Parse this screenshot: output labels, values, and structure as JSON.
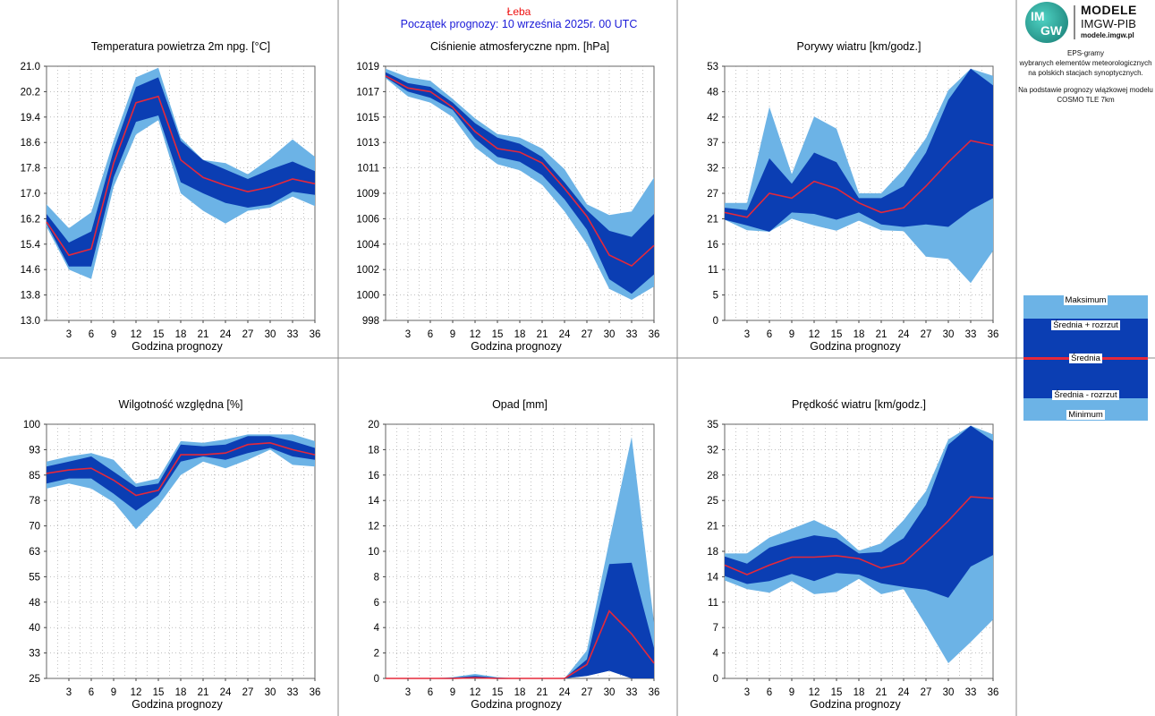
{
  "header": {
    "station": "Łeba",
    "start": "Początek prognozy: 10 września 2025r. 00 UTC"
  },
  "logo": {
    "badge_top": "IM",
    "badge_bottom": "GW",
    "brand1": "MODELE",
    "brand2": "IMGW-PIB",
    "brand3": "modele.imgw.pl"
  },
  "description": {
    "line1": "EPS-gramy",
    "line2": "wybranych elementów meteorologicznych",
    "line3": "na polskich stacjach  synoptycznych.",
    "line4": "Na podstawie prognozy wiązkowej modelu",
    "line5": "COSMO TLE 7km"
  },
  "legend": {
    "max": "Maksimum",
    "mean_plus": "Średnia + rozrzut",
    "mean": "Średnia",
    "mean_minus": "Średnia - rozrzut",
    "min": "Minimum"
  },
  "colors": {
    "outer_band": "#6cb3e6",
    "inner_band": "#0b3eb3",
    "mean_line": "#e5283a",
    "header_red": "#ee1111",
    "header_blue": "#1a1ad8",
    "grid": "#9a9a9a"
  },
  "chart_data": [
    {
      "type": "area",
      "title": "Temperatura powietrza 2m npg. [°C]",
      "xlabel": "Godzina prognozy",
      "x": [
        0,
        3,
        6,
        9,
        12,
        15,
        18,
        21,
        24,
        27,
        30,
        33,
        36
      ],
      "x_ticks": [
        3,
        6,
        9,
        12,
        15,
        18,
        21,
        24,
        27,
        30,
        33,
        36
      ],
      "y_ticks": [
        "13.0",
        "13.8",
        "14.6",
        "15.4",
        "16.2",
        "17.0",
        "17.8",
        "18.6",
        "19.4",
        "20.2",
        "21.0"
      ],
      "ylim": [
        13.0,
        21.0
      ],
      "min": [
        15.95,
        14.6,
        14.3,
        17.2,
        18.85,
        19.3,
        17.0,
        16.45,
        16.05,
        16.45,
        16.55,
        16.9,
        16.6
      ],
      "mean_minus": [
        16.05,
        14.7,
        14.7,
        17.5,
        19.25,
        19.45,
        17.35,
        17.0,
        16.7,
        16.55,
        16.65,
        17.05,
        16.95
      ],
      "mean": [
        16.1,
        15.05,
        15.25,
        17.95,
        19.85,
        20.05,
        18.05,
        17.5,
        17.25,
        17.05,
        17.2,
        17.45,
        17.3
      ],
      "mean_plus": [
        16.35,
        15.45,
        15.8,
        18.35,
        20.35,
        20.65,
        18.65,
        18.05,
        17.75,
        17.45,
        17.75,
        18.0,
        17.7
      ],
      "max": [
        16.65,
        15.9,
        16.4,
        18.65,
        20.65,
        20.95,
        18.75,
        18.05,
        17.95,
        17.6,
        18.1,
        18.7,
        18.15
      ]
    },
    {
      "type": "area",
      "title": "Ciśnienie atmosferyczne npm. [hPa]",
      "xlabel": "Godzina prognozy",
      "x": [
        0,
        3,
        6,
        9,
        12,
        15,
        18,
        21,
        24,
        27,
        30,
        33,
        36
      ],
      "x_ticks": [
        3,
        6,
        9,
        12,
        15,
        18,
        21,
        24,
        27,
        30,
        33,
        36
      ],
      "y_ticks": [
        "998",
        "1000",
        "1002",
        "1004",
        "1006",
        "1009",
        "1011",
        "1013",
        "1015",
        "1017",
        "1019"
      ],
      "ylim": [
        998,
        1019
      ],
      "min": [
        1018.0,
        1016.5,
        1016.0,
        1014.8,
        1012.3,
        1010.9,
        1010.4,
        1009.2,
        1007.0,
        1004.3,
        1000.6,
        999.7,
        1000.8
      ],
      "mean_minus": [
        1018.1,
        1016.9,
        1016.4,
        1015.4,
        1013.0,
        1011.5,
        1011.1,
        1010.0,
        1008.0,
        1005.5,
        1001.4,
        1000.2,
        1001.8
      ],
      "mean": [
        1018.2,
        1017.2,
        1016.9,
        1015.6,
        1013.6,
        1012.2,
        1011.9,
        1011.0,
        1008.9,
        1006.6,
        1003.4,
        1002.5,
        1004.2
      ],
      "mean_plus": [
        1018.5,
        1017.6,
        1017.3,
        1016.0,
        1014.3,
        1013.1,
        1012.6,
        1011.5,
        1009.4,
        1007.1,
        1005.4,
        1004.9,
        1006.8
      ],
      "max": [
        1018.8,
        1018.1,
        1017.8,
        1016.3,
        1014.7,
        1013.4,
        1013.1,
        1012.2,
        1010.5,
        1007.6,
        1006.7,
        1007.0,
        1009.8
      ]
    },
    {
      "type": "area",
      "title": "Porywy wiatru [km/godz.]",
      "xlabel": "Godzina prognozy",
      "x": [
        0,
        3,
        6,
        9,
        12,
        15,
        18,
        21,
        24,
        27,
        30,
        33,
        36
      ],
      "x_ticks": [
        3,
        6,
        9,
        12,
        15,
        18,
        21,
        24,
        27,
        30,
        33,
        36
      ],
      "y_ticks": [
        "0",
        "5",
        "11",
        "16",
        "21",
        "27",
        "32",
        "37",
        "42",
        "48",
        "53"
      ],
      "ylim": [
        0,
        53
      ],
      "min": [
        21.0,
        18.8,
        18.5,
        21.2,
        19.8,
        18.7,
        20.8,
        18.8,
        18.6,
        13.3,
        12.8,
        7.8,
        14.5
      ],
      "mean_minus": [
        21.0,
        19.8,
        18.5,
        22.5,
        22.2,
        21.0,
        22.5,
        20.0,
        19.5,
        20.0,
        19.5,
        23.0,
        25.5
      ],
      "mean": [
        22.5,
        21.5,
        26.5,
        25.5,
        29.0,
        27.5,
        24.5,
        22.5,
        23.5,
        28.0,
        33.0,
        37.5,
        36.5
      ],
      "mean_plus": [
        23.5,
        23.0,
        33.8,
        28.5,
        35.0,
        33.0,
        25.5,
        25.5,
        28.0,
        35.0,
        46.0,
        52.5,
        49.0
      ],
      "max": [
        24.5,
        24.5,
        44.5,
        30.5,
        42.5,
        40.0,
        26.5,
        26.5,
        31.5,
        38.0,
        48.0,
        52.5,
        51.0
      ]
    },
    {
      "type": "area",
      "title": "Wilgotność względna [%]",
      "xlabel": "Godzina prognozy",
      "x": [
        0,
        3,
        6,
        9,
        12,
        15,
        18,
        21,
        24,
        27,
        30,
        33,
        36
      ],
      "x_ticks": [
        3,
        6,
        9,
        12,
        15,
        18,
        21,
        24,
        27,
        30,
        33,
        36
      ],
      "y_ticks": [
        "25",
        "33",
        "40",
        "48",
        "55",
        "63",
        "70",
        "78",
        "85",
        "93",
        "100"
      ],
      "ylim": [
        25,
        100
      ],
      "min": [
        81.0,
        82.5,
        81.0,
        77.0,
        69.0,
        76.0,
        85.0,
        89.0,
        87.0,
        89.5,
        92.5,
        88.0,
        87.5
      ],
      "mean_minus": [
        82.5,
        84.0,
        84.0,
        79.5,
        74.5,
        79.0,
        89.0,
        90.5,
        89.5,
        91.5,
        93.0,
        90.5,
        89.5
      ],
      "mean": [
        85.5,
        86.5,
        87.0,
        83.5,
        79.0,
        80.5,
        91.0,
        91.0,
        91.5,
        94.0,
        94.5,
        92.5,
        91.0
      ],
      "mean_plus": [
        87.5,
        89.0,
        90.5,
        86.0,
        81.5,
        82.5,
        94.0,
        93.5,
        94.0,
        96.5,
        96.5,
        95.0,
        93.0
      ],
      "max": [
        89.0,
        90.5,
        91.5,
        89.5,
        82.5,
        84.0,
        95.0,
        94.5,
        95.5,
        97.0,
        97.0,
        97.0,
        95.0
      ]
    },
    {
      "type": "area",
      "title": "Opad [mm]",
      "xlabel": "Godzina prognozy",
      "x": [
        0,
        3,
        6,
        9,
        12,
        15,
        18,
        21,
        24,
        27,
        30,
        33,
        36
      ],
      "x_ticks": [
        3,
        6,
        9,
        12,
        15,
        18,
        21,
        24,
        27,
        30,
        33,
        36
      ],
      "y_ticks": [
        "0",
        "2",
        "4",
        "6",
        "8",
        "10",
        "12",
        "14",
        "16",
        "18",
        "20"
      ],
      "ylim": [
        0,
        20
      ],
      "min": [
        0,
        0,
        0,
        0,
        0,
        0,
        0,
        0,
        0,
        0.2,
        0.6,
        0,
        0
      ],
      "mean_minus": [
        0,
        0,
        0,
        0,
        0,
        0,
        0,
        0,
        0,
        0.2,
        0.6,
        0,
        0
      ],
      "mean": [
        0,
        0,
        0,
        0,
        0.05,
        0,
        0,
        0,
        0,
        1.1,
        5.3,
        3.5,
        1.2
      ],
      "mean_plus": [
        0,
        0,
        0,
        0.05,
        0.2,
        0.05,
        0,
        0,
        0,
        1.5,
        9.0,
        9.1,
        2.4
      ],
      "max": [
        0,
        0,
        0,
        0.1,
        0.35,
        0.1,
        0,
        0,
        0,
        2.2,
        10.8,
        19.0,
        4.4
      ]
    },
    {
      "type": "area",
      "title": "Prędkość wiatru [km/godz.]",
      "xlabel": "Godzina prognozy",
      "x": [
        0,
        3,
        6,
        9,
        12,
        15,
        18,
        21,
        24,
        27,
        30,
        33,
        36
      ],
      "x_ticks": [
        3,
        6,
        9,
        12,
        15,
        18,
        21,
        24,
        27,
        30,
        33,
        36
      ],
      "y_ticks": [
        "0",
        "4",
        "7",
        "11",
        "14",
        "18",
        "21",
        "25",
        "28",
        "32",
        "35"
      ],
      "ylim": [
        0,
        35
      ],
      "min": [
        13.5,
        12.3,
        11.8,
        13.4,
        11.6,
        11.9,
        13.7,
        11.6,
        12.3,
        7.3,
        2.1,
        5.0,
        8.1
      ],
      "mean_minus": [
        14.1,
        13.0,
        13.4,
        14.4,
        13.4,
        14.5,
        14.3,
        13.1,
        12.6,
        12.2,
        11.1,
        15.4,
        17.0
      ],
      "mean": [
        15.6,
        14.3,
        15.6,
        16.7,
        16.7,
        16.9,
        16.5,
        15.2,
        15.9,
        18.7,
        21.7,
        25.0,
        24.8
      ],
      "mean_plus": [
        16.8,
        15.8,
        18.0,
        18.9,
        19.7,
        19.3,
        17.2,
        17.4,
        19.3,
        23.9,
        32.2,
        34.8,
        32.7
      ],
      "max": [
        17.2,
        17.2,
        19.4,
        20.6,
        21.8,
        20.3,
        17.6,
        18.6,
        21.8,
        25.8,
        32.9,
        34.8,
        33.6
      ]
    }
  ]
}
